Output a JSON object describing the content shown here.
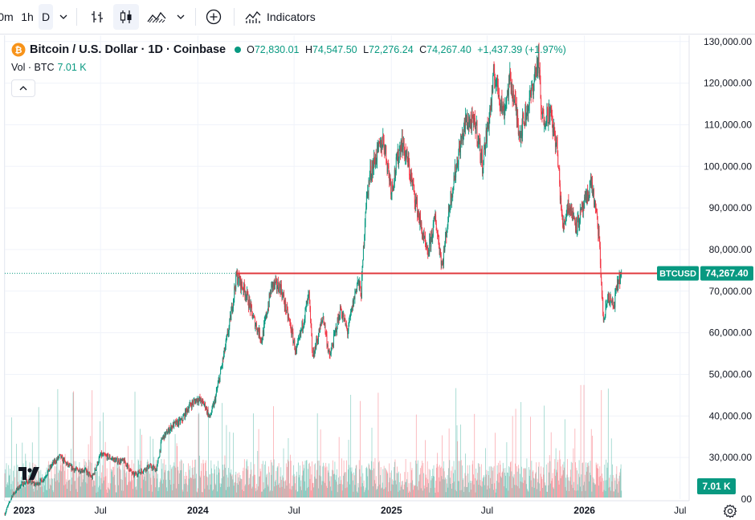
{
  "toolbar": {
    "intervals": [
      "0m",
      "1h",
      "D"
    ],
    "indicators_label": "Indicators",
    "icons": [
      "chevron-down-icon",
      "bar-chart-icon",
      "candles-icon",
      "area-chart-icon",
      "chevron-down-icon",
      "plus-circle-icon",
      "indicators-icon"
    ]
  },
  "legend": {
    "symbol": "Bitcoin / U.S. Dollar · 1D · Coinbase",
    "open_label": "O",
    "open": "72,830.01",
    "high_label": "H",
    "high": "74,547.50",
    "low_label": "L",
    "low": "72,276.24",
    "close_label": "C",
    "close": "74,267.40",
    "change": "+1,437.39 (+1.97%)",
    "vol_label": "Vol · BTC",
    "vol_value": "7.01 K"
  },
  "colors": {
    "up": "#089981",
    "down": "#f23645",
    "line": "#e03a3e",
    "axis_text": "#131722",
    "grid": "#f0f3fa"
  },
  "chart_data": {
    "type": "candlestick",
    "symbol_label": "BTCUSD",
    "last_price_label": "74,267.40",
    "volume_label": "7.01 K",
    "price_ticks": [
      30000,
      40000,
      50000,
      60000,
      70000,
      80000,
      90000,
      100000,
      110000,
      120000,
      130000
    ],
    "price_tick_labels": [
      "30,000.00",
      "40,000.00",
      "50,000.00",
      "60,000.00",
      "70,000.00",
      "80,000.00",
      "90,000.00",
      "100,000.00",
      "110,000.00",
      "120,000.00",
      "130,000.00"
    ],
    "partial_tick_label": "00",
    "ylim": [
      20000,
      131500
    ],
    "x_ticks": [
      "2023-01-01",
      "2023-07-01",
      "2024-01-01",
      "2024-07-01",
      "2025-01-01",
      "2025-07-01",
      "2026-01-01",
      "2026-07-01"
    ],
    "x_tick_labels": [
      "2023",
      "Jul",
      "2024",
      "Jul",
      "2025",
      "Jul",
      "2026",
      "Jul"
    ],
    "xlim": [
      "2023-01-01",
      "2026-07-18"
    ],
    "horizontal_line": 74267.4,
    "horizontal_line_start": "2024-03-14",
    "series": [
      {
        "date": "2023-01-01",
        "close": 16500
      },
      {
        "date": "2023-01-15",
        "close": 20900
      },
      {
        "date": "2023-02-01",
        "close": 23500
      },
      {
        "date": "2023-02-15",
        "close": 24300
      },
      {
        "date": "2023-03-01",
        "close": 23500
      },
      {
        "date": "2023-03-15",
        "close": 24800
      },
      {
        "date": "2023-04-01",
        "close": 28400
      },
      {
        "date": "2023-04-15",
        "close": 30300
      },
      {
        "date": "2023-05-01",
        "close": 28000
      },
      {
        "date": "2023-05-15",
        "close": 27000
      },
      {
        "date": "2023-06-01",
        "close": 27000
      },
      {
        "date": "2023-06-15",
        "close": 25100
      },
      {
        "date": "2023-07-01",
        "close": 30600
      },
      {
        "date": "2023-07-15",
        "close": 30200
      },
      {
        "date": "2023-08-01",
        "close": 29200
      },
      {
        "date": "2023-08-15",
        "close": 29100
      },
      {
        "date": "2023-09-01",
        "close": 25800
      },
      {
        "date": "2023-09-15",
        "close": 26600
      },
      {
        "date": "2023-10-01",
        "close": 27900
      },
      {
        "date": "2023-10-15",
        "close": 27100
      },
      {
        "date": "2023-10-25",
        "close": 34500
      },
      {
        "date": "2023-11-15",
        "close": 37800
      },
      {
        "date": "2023-12-01",
        "close": 38800
      },
      {
        "date": "2023-12-15",
        "close": 42300
      },
      {
        "date": "2024-01-01",
        "close": 44200
      },
      {
        "date": "2024-01-15",
        "close": 42500
      },
      {
        "date": "2024-01-23",
        "close": 39500
      },
      {
        "date": "2024-02-01",
        "close": 43000
      },
      {
        "date": "2024-02-15",
        "close": 51800
      },
      {
        "date": "2024-03-01",
        "close": 62000
      },
      {
        "date": "2024-03-14",
        "close": 73700
      },
      {
        "date": "2024-04-01",
        "close": 69600
      },
      {
        "date": "2024-04-15",
        "close": 63400
      },
      {
        "date": "2024-05-01",
        "close": 58300
      },
      {
        "date": "2024-05-20",
        "close": 71400
      },
      {
        "date": "2024-06-05",
        "close": 71100
      },
      {
        "date": "2024-06-25",
        "close": 61000
      },
      {
        "date": "2024-07-05",
        "close": 55000
      },
      {
        "date": "2024-07-29",
        "close": 69000
      },
      {
        "date": "2024-08-05",
        "close": 54000
      },
      {
        "date": "2024-08-25",
        "close": 64000
      },
      {
        "date": "2024-09-06",
        "close": 53900
      },
      {
        "date": "2024-09-27",
        "close": 65800
      },
      {
        "date": "2024-10-10",
        "close": 60200
      },
      {
        "date": "2024-10-29",
        "close": 72500
      },
      {
        "date": "2024-11-05",
        "close": 69500
      },
      {
        "date": "2024-11-13",
        "close": 90000
      },
      {
        "date": "2024-11-22",
        "close": 98500
      },
      {
        "date": "2024-12-05",
        "close": 103000
      },
      {
        "date": "2024-12-17",
        "close": 106500
      },
      {
        "date": "2025-01-01",
        "close": 94500
      },
      {
        "date": "2025-01-20",
        "close": 106200
      },
      {
        "date": "2025-02-01",
        "close": 101000
      },
      {
        "date": "2025-02-25",
        "close": 86000
      },
      {
        "date": "2025-03-10",
        "close": 78500
      },
      {
        "date": "2025-03-25",
        "close": 87600
      },
      {
        "date": "2025-04-07",
        "close": 76000
      },
      {
        "date": "2025-04-22",
        "close": 91700
      },
      {
        "date": "2025-05-08",
        "close": 103000
      },
      {
        "date": "2025-05-22",
        "close": 111000
      },
      {
        "date": "2025-06-10",
        "close": 109800
      },
      {
        "date": "2025-06-22",
        "close": 100500
      },
      {
        "date": "2025-07-10",
        "close": 116500
      },
      {
        "date": "2025-07-14",
        "close": 122500
      },
      {
        "date": "2025-08-01",
        "close": 113000
      },
      {
        "date": "2025-08-14",
        "close": 121000
      },
      {
        "date": "2025-09-01",
        "close": 108000
      },
      {
        "date": "2025-09-20",
        "close": 116000
      },
      {
        "date": "2025-10-06",
        "close": 126000
      },
      {
        "date": "2025-10-12",
        "close": 111500
      },
      {
        "date": "2025-10-28",
        "close": 113000
      },
      {
        "date": "2025-11-10",
        "close": 104500
      },
      {
        "date": "2025-11-21",
        "close": 85000
      },
      {
        "date": "2025-12-01",
        "close": 91000
      },
      {
        "date": "2025-12-18",
        "close": 86000
      },
      {
        "date": "2026-01-05",
        "close": 92000
      },
      {
        "date": "2026-01-14",
        "close": 96500
      },
      {
        "date": "2026-01-28",
        "close": 84000
      },
      {
        "date": "2026-02-06",
        "close": 62500
      },
      {
        "date": "2026-02-15",
        "close": 69000
      },
      {
        "date": "2026-02-25",
        "close": 66000
      },
      {
        "date": "2026-03-05",
        "close": 72000
      },
      {
        "date": "2026-03-12",
        "close": 74267.4
      }
    ]
  }
}
